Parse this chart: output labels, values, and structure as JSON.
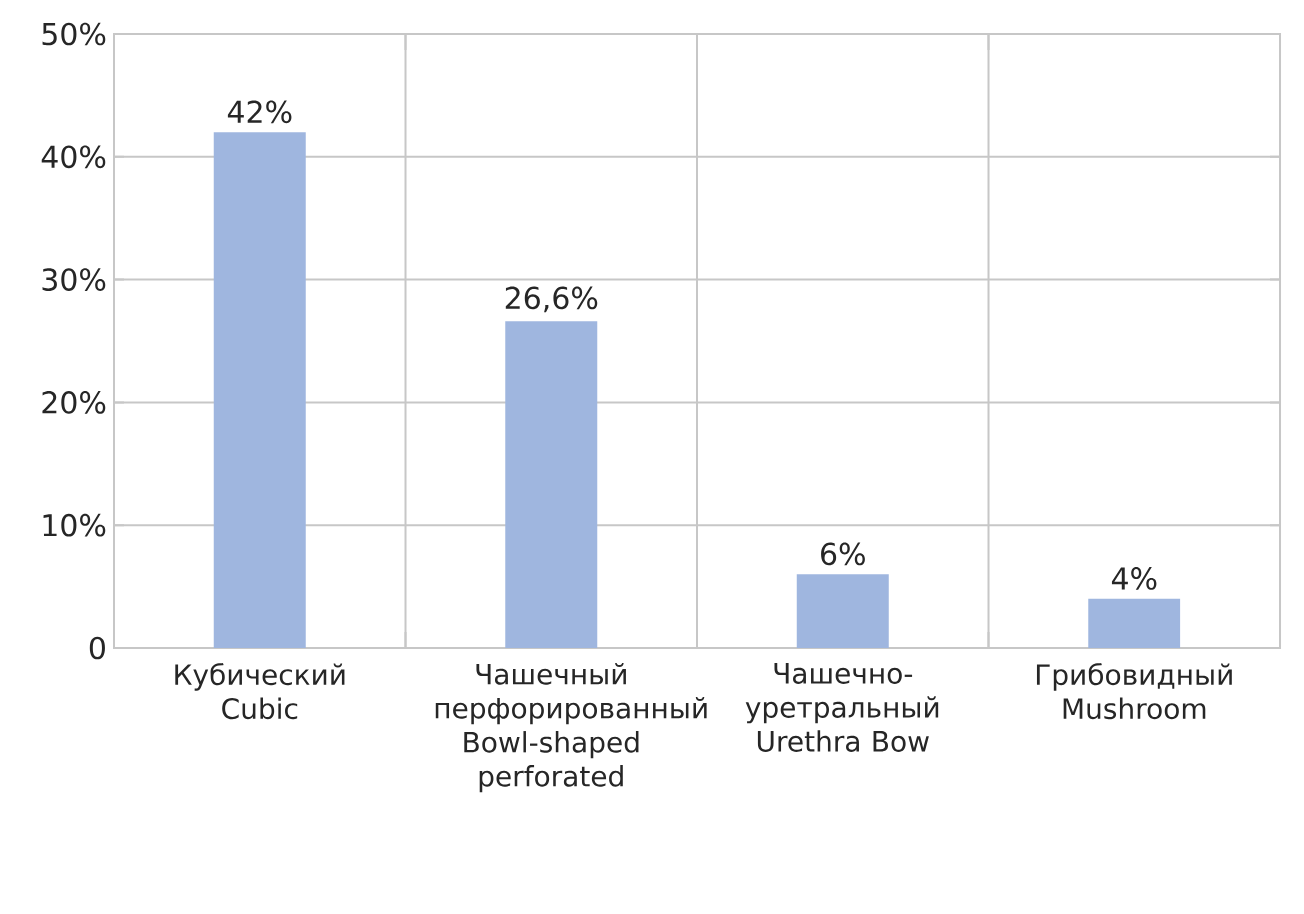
{
  "chart_data": {
    "type": "bar",
    "categories": [
      "Кубический Cubic",
      "Чашечный перфорированный Bowl-shaped perforated",
      "Чашечно-уретральный Urethra Bow",
      "Грибовидный Mushroom"
    ],
    "values": [
      42,
      26.6,
      6,
      4
    ],
    "value_labels": [
      "42%",
      "26,6%",
      "6%",
      "4%"
    ],
    "color": "#9fb6df",
    "ylim": [
      0,
      50
    ],
    "yticks": [
      0,
      {
        "value": 10,
        "label": "10%"
      },
      {
        "value": 20,
        "label": "20%"
      },
      {
        "value": 30,
        "label": "30%"
      },
      {
        "value": 40,
        "label": "40%"
      },
      {
        "value": 50,
        "label": "50%"
      }
    ],
    "grid": true
  }
}
